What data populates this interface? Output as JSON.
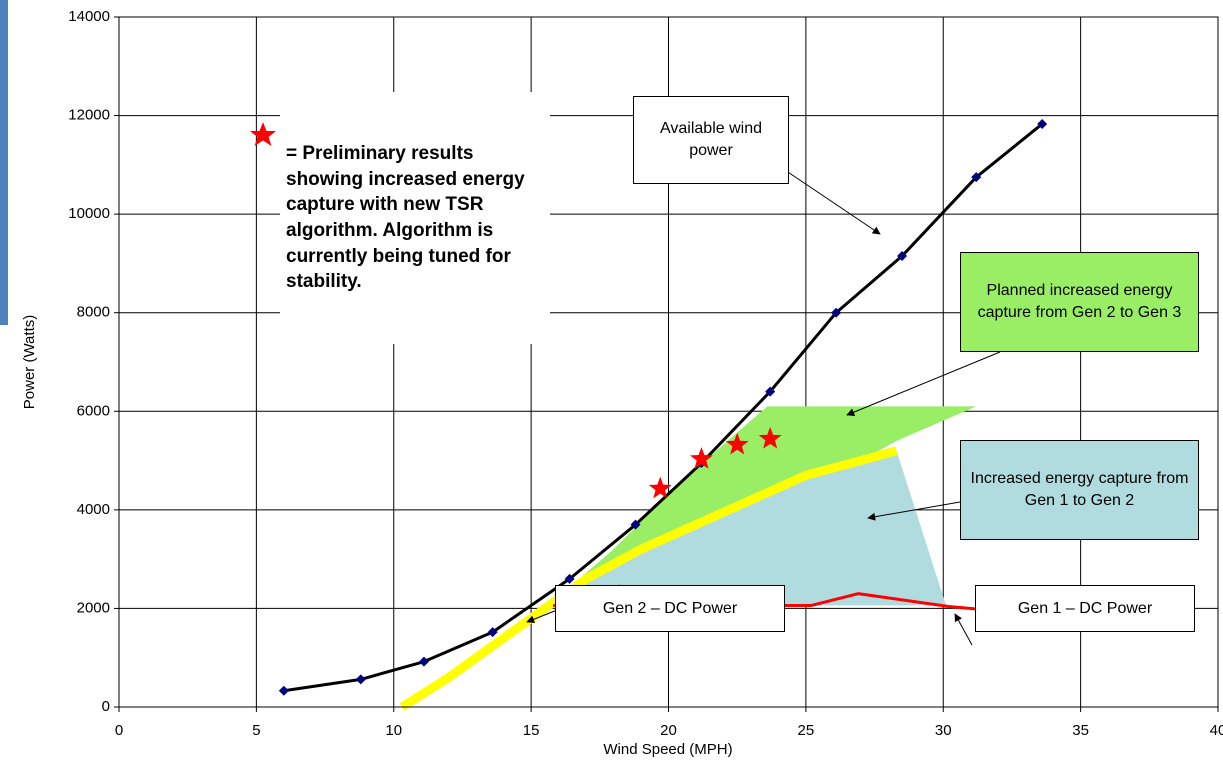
{
  "chart_data": {
    "type": "line",
    "x_label": "Wind Speed (MPH)",
    "y_label": "Power (Watts)",
    "xlim": [
      0,
      40
    ],
    "xticks": [
      0,
      5,
      10,
      15,
      20,
      25,
      30,
      35,
      40
    ],
    "ylim": [
      0,
      14000
    ],
    "yticks": [
      0,
      2000,
      4000,
      6000,
      8000,
      10000,
      12000,
      14000
    ],
    "grid": true,
    "areas": [
      {
        "name": "Planned increased energy capture from Gen 2 to Gen 3",
        "color": "#99ee66",
        "x": [
          15.5,
          17,
          19,
          21,
          23,
          25,
          27,
          28.3,
          31.2,
          23.6,
          20.5,
          18
        ],
        "values": [
          2000,
          2600,
          3200,
          3700,
          4200,
          4700,
          5000,
          5400,
          6100,
          6100,
          4600,
          3200
        ]
      },
      {
        "name": "Increased energy capture from Gen 1 to Gen 2",
        "color": "#b0dcdf",
        "x": [
          15.8,
          17,
          19,
          21,
          23,
          25,
          27,
          28.3,
          30.1
        ],
        "values": [
          2060,
          2600,
          3200,
          3700,
          4200,
          4700,
          5000,
          5200,
          2060
        ]
      }
    ],
    "series": [
      {
        "name": "Gen 2 – DC Power",
        "color": "#ffff00",
        "width": 9,
        "x": [
          10.3,
          12,
          14,
          15.5,
          17,
          19,
          21,
          23,
          25,
          27,
          28.3
        ],
        "values": [
          0,
          600,
          1400,
          2000,
          2600,
          3200,
          3700,
          4200,
          4700,
          5000,
          5200
        ]
      },
      {
        "name": "Gen 1 – DC Power",
        "color": "#ff0000",
        "width": 3,
        "x": [
          15.8,
          25.2,
          26.9,
          30.2,
          33.6
        ],
        "values": [
          2060,
          2060,
          2300,
          2040,
          1870
        ]
      },
      {
        "name": "Available wind power",
        "color": "#000000",
        "width": 3,
        "marker_color": "#000080",
        "x": [
          6,
          8.8,
          11.1,
          13.6,
          16.4,
          18.8,
          21.2,
          23.7,
          26.1,
          28.5,
          31.2,
          33.6
        ],
        "values": [
          330,
          560,
          920,
          1520,
          2600,
          3700,
          4950,
          6400,
          8000,
          9150,
          10750,
          11830
        ]
      }
    ],
    "stars": {
      "color": "#ff0000",
      "x": [
        19.7,
        21.2,
        22.5,
        23.7
      ],
      "values": [
        4430,
        5030,
        5320,
        5440
      ]
    },
    "star_note": "= Preliminary results showing increased energy capture with new TSR algorithm. Algorithm is currently being tuned for stability."
  }
}
